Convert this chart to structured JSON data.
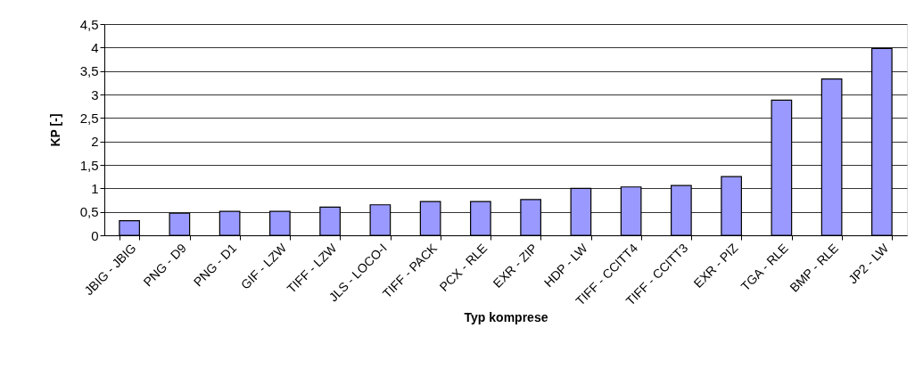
{
  "chart_data": {
    "type": "bar",
    "xlabel": "Typ komprese",
    "ylabel": "KP [-]",
    "categories": [
      "JBIG - JBIG",
      "PNG - D9",
      "PNG - D1",
      "GIF - LZW",
      "TIFF - LZW",
      "JLS - LOCO-I",
      "TIFF - PACK",
      "PCX - RLE",
      "EXR - ZIP",
      "HDP - LW",
      "TIFF - CCITT4",
      "TIFF - CCITT3",
      "EXR - PIZ",
      "TGA - RLE",
      "BMP - RLE",
      "JP2 - LW"
    ],
    "values": [
      0.31,
      0.47,
      0.51,
      0.51,
      0.6,
      0.65,
      0.72,
      0.72,
      0.76,
      1.0,
      1.03,
      1.06,
      1.25,
      2.88,
      3.33,
      3.98
    ],
    "color": "#9999ff",
    "ylim": [
      0,
      4.5
    ],
    "yticks": [
      0,
      {
        "value": 0.5,
        "label": "0,5"
      },
      1,
      {
        "value": 1.5,
        "label": "1,5"
      },
      2,
      {
        "value": 2.5,
        "label": "2,5"
      },
      3,
      {
        "value": 3.5,
        "label": "3,5"
      },
      4,
      {
        "value": 4.5,
        "label": "4,5"
      }
    ],
    "grid": "y"
  }
}
